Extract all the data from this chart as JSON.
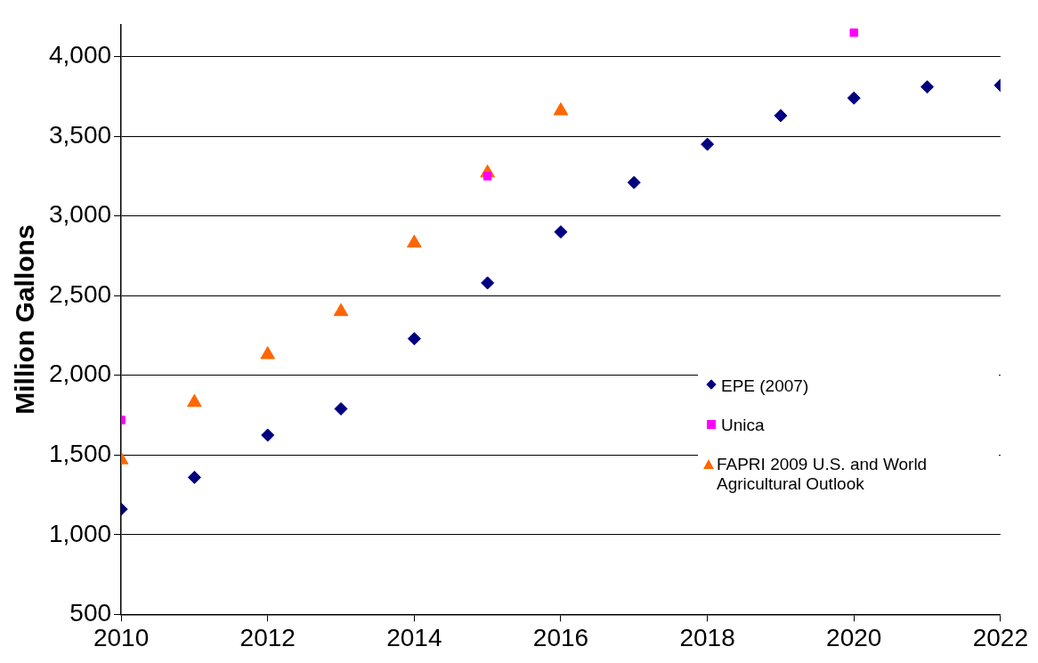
{
  "chart_data": {
    "type": "scatter",
    "ylabel": "Million Gallons",
    "xlim": [
      2010,
      2022
    ],
    "xticks": [
      2010,
      2012,
      2014,
      2016,
      2018,
      2020,
      2022
    ],
    "ylim": [
      500,
      4200
    ],
    "yticks": [
      {
        "value": 500,
        "label": "500"
      },
      {
        "value": 1000,
        "label": "1,000"
      },
      {
        "value": 1500,
        "label": "1,500"
      },
      {
        "value": 2000,
        "label": "2,000"
      },
      {
        "value": 2500,
        "label": "2,500"
      },
      {
        "value": 3000,
        "label": "3,000"
      },
      {
        "value": 3500,
        "label": "3,500"
      },
      {
        "value": 4000,
        "label": "4,000"
      }
    ],
    "grid": "y",
    "legend": "right",
    "series": [
      {
        "name": "EPE (2007)",
        "color": "#000080",
        "marker": "diamond",
        "x": [
          2010,
          2011,
          2012,
          2013,
          2014,
          2015,
          2016,
          2017,
          2018,
          2019,
          2020,
          2021,
          2022
        ],
        "values": [
          1160,
          1360,
          1625,
          1790,
          2230,
          2580,
          2900,
          3210,
          3450,
          3630,
          3740,
          3810,
          3820
        ]
      },
      {
        "name": "Unica",
        "color": "#ff00ff",
        "marker": "square",
        "x": [
          2010,
          2015,
          2020
        ],
        "values": [
          1720,
          3250,
          4150
        ]
      },
      {
        "name": "FAPRI 2009 U.S. and World Agricultural Outlook",
        "color": "#ff6600",
        "marker": "triangle",
        "x": [
          2010,
          2011,
          2012,
          2013,
          2014,
          2015,
          2016
        ],
        "values": [
          1470,
          1830,
          2130,
          2400,
          2830,
          3270,
          3660
        ]
      }
    ]
  }
}
